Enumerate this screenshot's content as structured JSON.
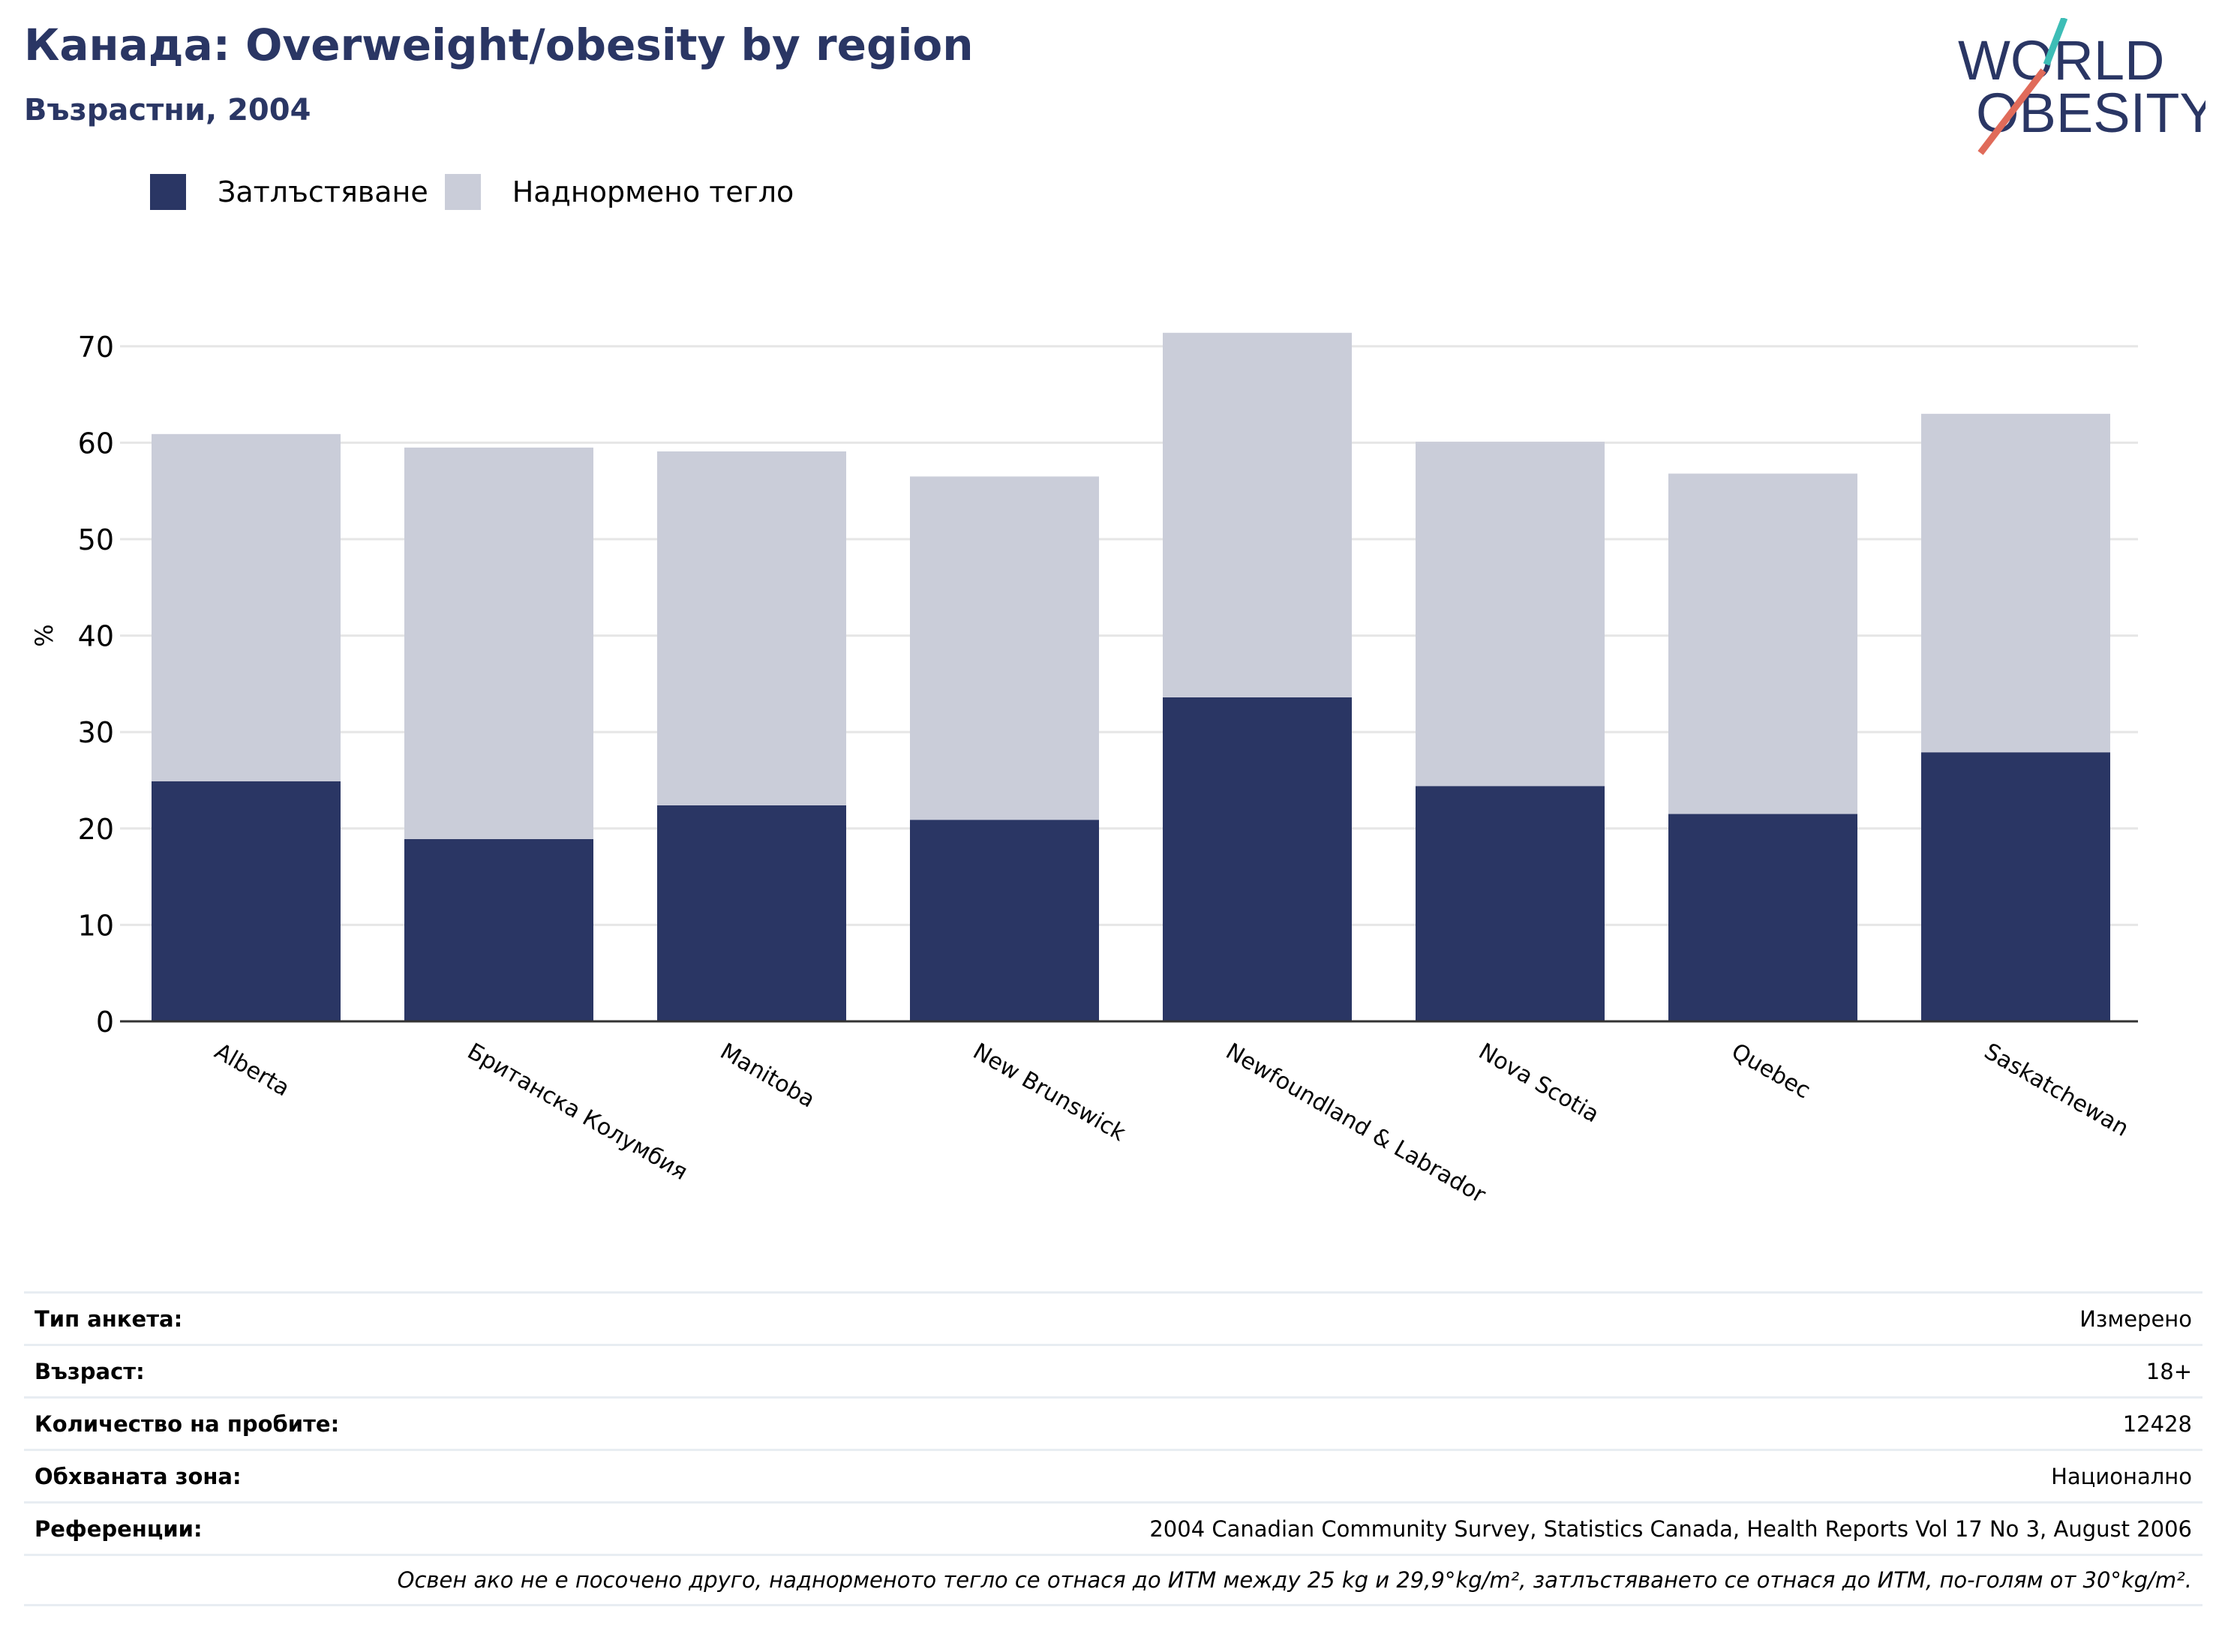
{
  "header": {
    "title": "Канада: Overweight/obesity by region",
    "subtitle": "Възрастни, 2004"
  },
  "logo": {
    "line1": "WORLD",
    "line2": "OBESITY",
    "colors": {
      "text": "#2a3664",
      "slash_top": "#3dbdb6",
      "slash_bottom": "#e06b5a"
    }
  },
  "colors": {
    "obesity": "#2a3664",
    "overweight": "#cacdd9",
    "grid": "#e6e6e6",
    "axis": "#333333"
  },
  "chart_data": {
    "type": "bar",
    "stacked": true,
    "title": "Канада: Overweight/obesity by region",
    "subtitle": "Възрастни, 2004",
    "ylabel": "%",
    "xlabel": "",
    "ylim": [
      0,
      75
    ],
    "yticks": [
      0,
      10,
      20,
      30,
      40,
      50,
      60,
      70
    ],
    "grid": true,
    "legend_position": "top-left",
    "categories": [
      "Alberta",
      "Британска Колумбия",
      "Manitoba",
      "New Brunswick",
      "Newfoundland & Labrador",
      "Nova Scotia",
      "Quebec",
      "Saskatchewan"
    ],
    "series": [
      {
        "name": "Затлъстяване",
        "values": [
          24.9,
          18.9,
          22.4,
          20.9,
          33.6,
          24.4,
          21.5,
          27.9
        ]
      },
      {
        "name": "Наднормено тегло",
        "values": [
          36.0,
          40.6,
          36.7,
          35.6,
          37.8,
          35.7,
          35.3,
          35.1
        ]
      }
    ]
  },
  "info_table": {
    "rows": [
      {
        "label": "Тип анкета:",
        "value": "Измерено"
      },
      {
        "label": "Възраст:",
        "value": "18+"
      },
      {
        "label": "Количество на пробите:",
        "value": "12428"
      },
      {
        "label": "Обхваната зона:",
        "value": "Национално"
      },
      {
        "label": "Референции:",
        "value": "2004 Canadian Community Survey, Statistics Canada, Health Reports Vol 17 No 3, August 2006"
      }
    ],
    "footnote": "Освен ако не е посочено друго, наднорменото тегло се отнася до ИТМ между 25 kg и 29,9°kg/m², затлъстяването се отнася до ИТМ, по-голям от 30°kg/m²."
  }
}
